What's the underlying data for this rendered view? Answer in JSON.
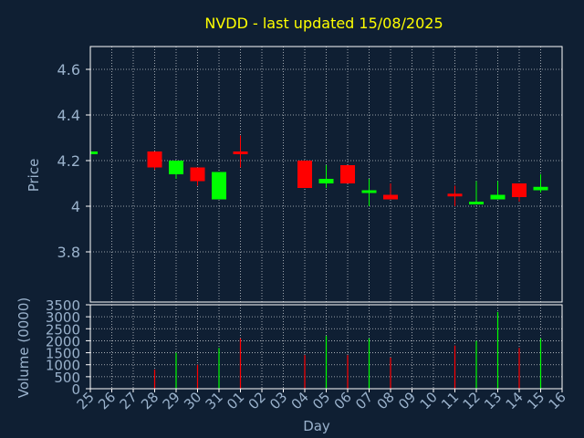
{
  "chart_data": {
    "type": "candlestick",
    "title": "NVDD - last updated 15/08/2025",
    "colors": {
      "background": "#0f1f33",
      "axis": "#ffffff",
      "grid": "#ffffff",
      "text": "#9ab2cc",
      "title": "#ffff00",
      "up": "#00ff00",
      "down": "#ff0000"
    },
    "x": {
      "label": "Day",
      "ticks": [
        "25",
        "26",
        "27",
        "28",
        "29",
        "30",
        "31",
        "01",
        "02",
        "03",
        "04",
        "05",
        "06",
        "07",
        "08",
        "09",
        "10",
        "11",
        "12",
        "13",
        "14",
        "15",
        "16"
      ]
    },
    "price": {
      "ylabel": "Price",
      "ylim": [
        3.58,
        4.7
      ],
      "ticks": [
        3.8,
        4,
        4.2,
        4.4,
        4.6
      ],
      "tick_labels": [
        "3.8",
        "4",
        "4.2",
        "4.4",
        "4.6"
      ]
    },
    "volume": {
      "ylabel": "Volume (0000)",
      "ylim": [
        0,
        3500
      ],
      "ticks": [
        0,
        500,
        1000,
        1500,
        2000,
        2500,
        3000,
        3500
      ],
      "tick_labels": [
        "0",
        "500",
        "1000",
        "1500",
        "2000",
        "2500",
        "3000",
        "3500"
      ]
    },
    "candles": [
      {
        "day": "25",
        "open": 4.235,
        "close": 4.24,
        "high": 4.24,
        "low": 4.235,
        "volume": 0
      },
      {
        "day": "28",
        "open": 4.24,
        "close": 4.17,
        "high": 4.24,
        "low": 4.16,
        "volume": 800
      },
      {
        "day": "29",
        "open": 4.14,
        "close": 4.2,
        "high": 4.2,
        "low": 4.12,
        "volume": 1500
      },
      {
        "day": "30",
        "open": 4.17,
        "close": 4.11,
        "high": 4.17,
        "low": 4.09,
        "volume": 1000
      },
      {
        "day": "31",
        "open": 4.03,
        "close": 4.15,
        "high": 4.15,
        "low": 4.03,
        "volume": 1700
      },
      {
        "day": "01",
        "open": 4.24,
        "close": 4.23,
        "high": 4.31,
        "low": 4.17,
        "volume": 2100
      },
      {
        "day": "04",
        "open": 4.2,
        "close": 4.08,
        "high": 4.2,
        "low": 4.08,
        "volume": 1400
      },
      {
        "day": "05",
        "open": 4.1,
        "close": 4.12,
        "high": 4.18,
        "low": 4.08,
        "volume": 2200
      },
      {
        "day": "06",
        "open": 4.18,
        "close": 4.1,
        "high": 4.18,
        "low": 4.1,
        "volume": 1400
      },
      {
        "day": "07",
        "open": 4.06,
        "close": 4.07,
        "high": 4.12,
        "low": 4,
        "volume": 2100
      },
      {
        "day": "08",
        "open": 4.05,
        "close": 4.03,
        "high": 4.1,
        "low": 4.03,
        "volume": 1300
      },
      {
        "day": "11",
        "open": 4.055,
        "close": 4.045,
        "high": 4.09,
        "low": 4,
        "volume": 1800
      },
      {
        "day": "12",
        "open": 4.015,
        "close": 4.02,
        "high": 4.11,
        "low": 4.015,
        "volume": 2000
      },
      {
        "day": "13",
        "open": 4.03,
        "close": 4.05,
        "high": 4.11,
        "low": 4.03,
        "volume": 3200
      },
      {
        "day": "14",
        "open": 4.1,
        "close": 4.04,
        "high": 4.1,
        "low": 4.02,
        "volume": 1700
      },
      {
        "day": "15",
        "open": 4.07,
        "close": 4.085,
        "high": 4.14,
        "low": 4.06,
        "volume": 2100
      }
    ],
    "grid": true,
    "legend": "none"
  }
}
